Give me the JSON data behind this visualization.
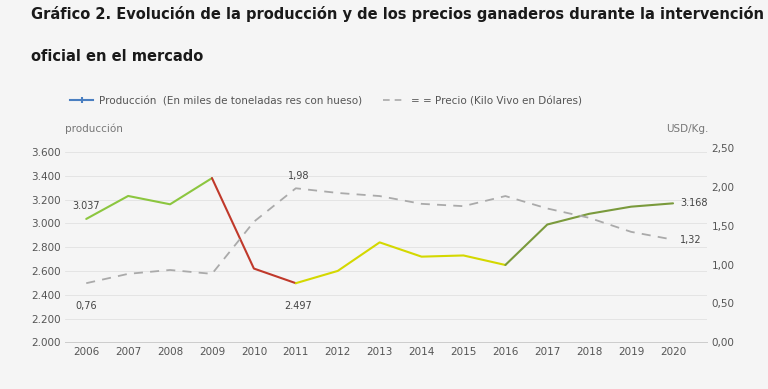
{
  "title_line1": "Gráfico 2. Evolución de la producción y de los precios ganaderos durante la intervención",
  "title_line2": "oficial en el mercado",
  "years": [
    2006,
    2007,
    2008,
    2009,
    2010,
    2011,
    2012,
    2013,
    2014,
    2015,
    2016,
    2017,
    2018,
    2019,
    2020
  ],
  "production": [
    3037,
    3230,
    3160,
    3380,
    2620,
    2497,
    2600,
    2840,
    2720,
    2730,
    2650,
    2990,
    3080,
    3140,
    3168
  ],
  "price": [
    0.76,
    0.88,
    0.93,
    0.88,
    1.55,
    1.98,
    1.92,
    1.88,
    1.78,
    1.75,
    1.88,
    1.72,
    1.6,
    1.42,
    1.32
  ],
  "ylim_left": [
    2000,
    3700
  ],
  "ylim_right": [
    0.0,
    2.6
  ],
  "yticks_left": [
    2000,
    2200,
    2400,
    2600,
    2800,
    3000,
    3200,
    3400,
    3600
  ],
  "yticks_right": [
    0.0,
    0.5,
    1.0,
    1.5,
    2.0,
    2.5
  ],
  "ylabel_left": "producción",
  "ylabel_right": "USD/Kg.",
  "legend_prod": "Producción",
  "legend_prod_sub": "  (En miles de toneladas res con hueso)",
  "legend_price": "Precio (Kilo Vivo en Dólares)",
  "bg_color": "#f5f5f5",
  "price_line_color": "#aaaaaa",
  "title_fontsize": 10.5,
  "axis_label_fontsize": 7.5,
  "tick_fontsize": 7.5,
  "annot_fontsize": 7.0,
  "legend_fontsize": 7.5,
  "seg_green_idx": [
    0,
    1,
    2,
    3
  ],
  "seg_red_idx": [
    3,
    4,
    5
  ],
  "seg_yellow_idx": [
    5,
    6,
    7,
    8,
    9,
    10
  ],
  "seg_olive_idx": [
    10,
    11,
    12,
    13,
    14
  ],
  "color_green": "#8cc63f",
  "color_red": "#c0392b",
  "color_yellow": "#d4d800",
  "color_olive": "#7a9a3c",
  "color_legend_prod": "#4a7fc1"
}
